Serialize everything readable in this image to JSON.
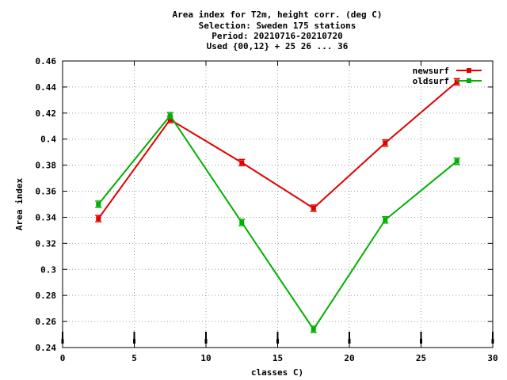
{
  "chart_data": {
    "type": "line",
    "title_lines": [
      "Area index  for T2m, height corr. (deg C)",
      "Selection: Sweden    175 stations",
      "Period: 20210716-20210720",
      "Used {00,12} + 25 26 ... 36"
    ],
    "xlabel": "classes C)",
    "ylabel": "Area index",
    "xlim": [
      0,
      30
    ],
    "ylim": [
      0.24,
      0.46
    ],
    "xticks": [
      0,
      5,
      10,
      15,
      20,
      25,
      30
    ],
    "yticks": [
      0.24,
      0.26,
      0.28,
      0.3,
      0.32,
      0.34,
      0.36,
      0.38,
      0.4,
      0.42,
      0.44,
      0.46
    ],
    "ytick_labels": [
      "0.24",
      "0.26",
      "0.28",
      "0.3",
      "0.32",
      "0.34",
      "0.36",
      "0.38",
      "0.4",
      "0.42",
      "0.44",
      "0.46"
    ],
    "grid": true,
    "legend_position": "top-right",
    "x": [
      2.5,
      7.5,
      12.5,
      17.5,
      22.5,
      27.5
    ],
    "series": [
      {
        "name": "newsurf",
        "color": "#e00000",
        "values": [
          0.339,
          0.415,
          0.382,
          0.347,
          0.397,
          0.444
        ]
      },
      {
        "name": "oldsurf",
        "color": "#00b000",
        "values": [
          0.35,
          0.418,
          0.336,
          0.254,
          0.338,
          0.383
        ]
      }
    ]
  }
}
